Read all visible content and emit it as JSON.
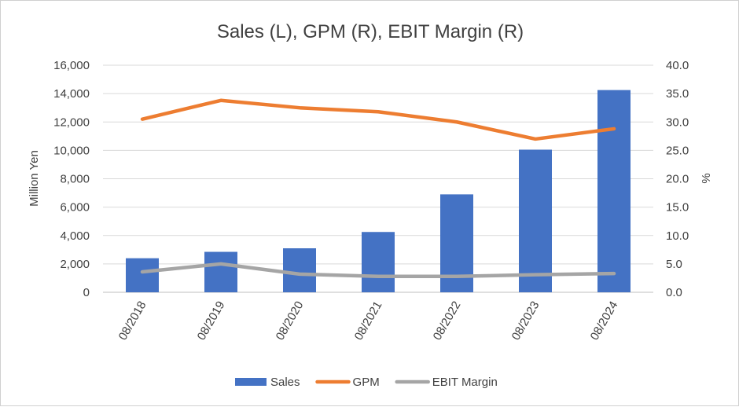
{
  "chart_data": {
    "type": "bar",
    "title": "Sales (L), GPM (R), EBIT Margin (R)",
    "categories": [
      "08/2018",
      "08/2019",
      "08/2020",
      "08/2021",
      "08/2022",
      "08/2023",
      "08/2024"
    ],
    "y_left": {
      "label": "Million Yen",
      "lim": [
        0,
        16000
      ],
      "ticks": [
        "16,000",
        "14,000",
        "12,000",
        "10,000",
        "8,000",
        "6,000",
        "4,000",
        "2,000",
        "0"
      ],
      "tick_values": [
        16000,
        14000,
        12000,
        10000,
        8000,
        6000,
        4000,
        2000,
        0
      ]
    },
    "y_right": {
      "label": "%",
      "lim": [
        0,
        40
      ],
      "ticks": [
        "40.0",
        "35.0",
        "30.0",
        "25.0",
        "20.0",
        "15.0",
        "10.0",
        "5.0",
        "0.0"
      ],
      "tick_values": [
        40,
        35,
        30,
        25,
        20,
        15,
        10,
        5,
        0
      ]
    },
    "grid": true,
    "legend_position": "bottom",
    "series": [
      {
        "name": "Sales",
        "type": "bar",
        "axis": "left",
        "color": "#4472C4",
        "values": [
          2400,
          2850,
          3100,
          4250,
          6900,
          10050,
          14250
        ]
      },
      {
        "name": "GPM",
        "type": "line",
        "axis": "right",
        "color": "#ED7D31",
        "values": [
          30.5,
          33.8,
          32.5,
          31.8,
          30.0,
          27.0,
          28.8
        ]
      },
      {
        "name": "EBIT Margin",
        "type": "line",
        "axis": "right",
        "color": "#A5A5A5",
        "values": [
          3.6,
          5.0,
          3.2,
          2.8,
          2.8,
          3.1,
          3.3
        ]
      }
    ]
  }
}
